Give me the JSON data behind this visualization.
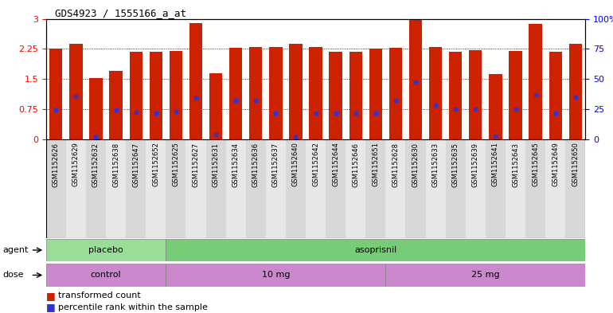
{
  "title": "GDS4923 / 1555166_a_at",
  "samples": [
    "GSM1152626",
    "GSM1152629",
    "GSM1152632",
    "GSM1152638",
    "GSM1152647",
    "GSM1152652",
    "GSM1152625",
    "GSM1152627",
    "GSM1152631",
    "GSM1152634",
    "GSM1152636",
    "GSM1152637",
    "GSM1152640",
    "GSM1152642",
    "GSM1152644",
    "GSM1152646",
    "GSM1152651",
    "GSM1152628",
    "GSM1152630",
    "GSM1152633",
    "GSM1152635",
    "GSM1152639",
    "GSM1152641",
    "GSM1152643",
    "GSM1152645",
    "GSM1152649",
    "GSM1152650"
  ],
  "bar_heights": [
    2.25,
    2.37,
    1.53,
    1.7,
    2.18,
    2.17,
    2.2,
    2.9,
    1.65,
    2.28,
    2.3,
    2.3,
    2.38,
    2.3,
    2.18,
    2.17,
    2.25,
    2.27,
    2.97,
    2.3,
    2.18,
    2.22,
    1.63,
    2.19,
    2.87,
    2.18,
    2.38
  ],
  "blue_dot_heights": [
    0.73,
    1.07,
    0.05,
    0.73,
    0.68,
    0.65,
    0.7,
    1.03,
    0.12,
    0.97,
    0.97,
    0.65,
    0.05,
    0.65,
    0.65,
    0.65,
    0.65,
    0.97,
    1.42,
    0.85,
    0.75,
    0.75,
    0.07,
    0.75,
    1.1,
    0.65,
    1.05
  ],
  "ylim": [
    0,
    3
  ],
  "yticks_left": [
    0,
    0.75,
    1.5,
    2.25,
    3
  ],
  "yticks_right": [
    0,
    25,
    50,
    75,
    100
  ],
  "bar_color": "#cc2200",
  "dot_color": "#3333cc",
  "agent_groups": [
    {
      "label": "placebo",
      "start": 0,
      "end": 6,
      "color": "#99dd99"
    },
    {
      "label": "asoprisnil",
      "start": 6,
      "end": 27,
      "color": "#77cc77"
    }
  ],
  "dose_groups": [
    {
      "label": "control",
      "start": 0,
      "end": 6,
      "color": "#cc88cc"
    },
    {
      "label": "10 mg",
      "start": 6,
      "end": 17,
      "color": "#cc88cc"
    },
    {
      "label": "25 mg",
      "start": 17,
      "end": 27,
      "color": "#cc88cc"
    }
  ],
  "legend_items": [
    {
      "label": "transformed count",
      "color": "#cc2200"
    },
    {
      "label": "percentile rank within the sample",
      "color": "#3333cc"
    }
  ]
}
